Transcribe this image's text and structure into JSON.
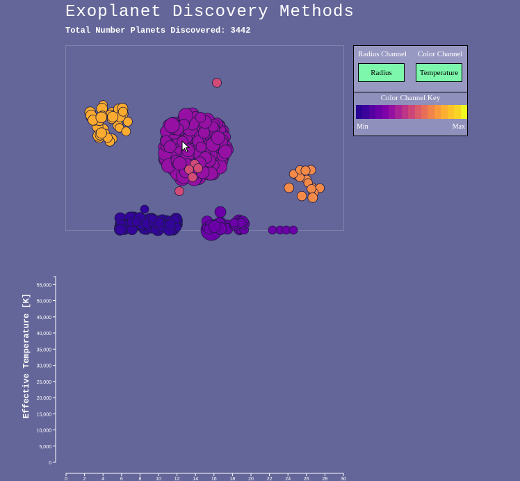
{
  "header": {
    "title": "Exoplanet Discovery Methods",
    "subtitle": "Total Number Planets Discovered: 3442"
  },
  "controls": {
    "radius_channel_label": "Radius Channel",
    "color_channel_label": "Color Channel",
    "radius_button": "Radius",
    "color_button": "Temperature",
    "key_title": "Color Channel Key",
    "key_min": "Min",
    "key_max": "Max",
    "key_colors": [
      "#2a0392",
      "#3b049c",
      "#5402a2",
      "#6a00a8",
      "#7e03a8",
      "#9511a1",
      "#a92395",
      "#bc3587",
      "#cc4778",
      "#dc5b69",
      "#e76f5a",
      "#f1844b",
      "#f89a3d",
      "#fdaf31",
      "#fdc328",
      "#f8d524",
      "#f0f921"
    ]
  },
  "bubble_colors": {
    "cluster_yellow": "#fbab2f",
    "cluster_purple": "#9510a3",
    "cluster_orange": "#f48a48",
    "cluster_navy": "#330599",
    "cluster_violet": "#6c00a8",
    "accent_pink": "#d14b76"
  },
  "chart_data": {
    "type": "scatter",
    "title": "",
    "xlabel": "",
    "ylabel": "Effective Temperature [K]",
    "xlim": [
      0,
      30
    ],
    "ylim": [
      0,
      57000
    ],
    "x_ticks": [
      0,
      2,
      4,
      6,
      8,
      10,
      12,
      14,
      16,
      18,
      20,
      22,
      24,
      26,
      28,
      30
    ],
    "y_ticks": [
      0,
      5000,
      10000,
      15000,
      20000,
      25000,
      30000,
      35000,
      40000,
      45000,
      50000,
      55000
    ],
    "y_tick_labels": [
      "0",
      "5,000",
      "10,000",
      "15,000",
      "20,000",
      "25,000",
      "30,000",
      "35,000",
      "40,000",
      "45,000",
      "50,000",
      "55,000"
    ],
    "series": []
  }
}
